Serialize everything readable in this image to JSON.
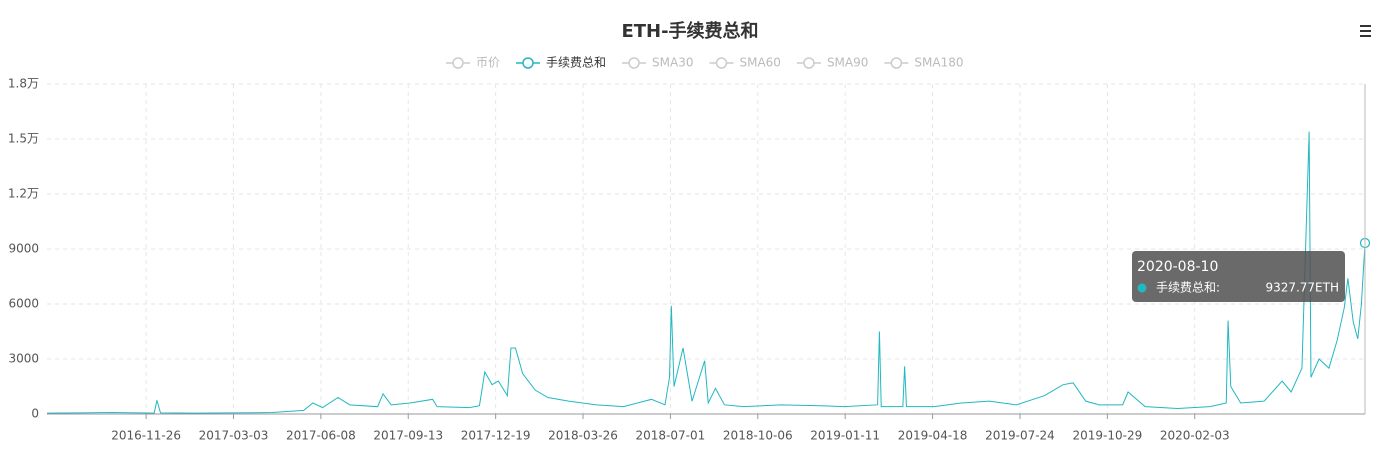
{
  "chart_data": {
    "type": "line",
    "title": "ETH-手续费总和",
    "legend": [
      {
        "name": "币价",
        "active": false
      },
      {
        "name": "手续费总和",
        "active": true
      },
      {
        "name": "SMA30",
        "active": false
      },
      {
        "name": "SMA60",
        "active": false
      },
      {
        "name": "SMA90",
        "active": false
      },
      {
        "name": "SMA180",
        "active": false
      }
    ],
    "xlim": [
      "2016-08-08",
      "2020-08-10"
    ],
    "xticks": [
      "2016-11-26",
      "2017-03-03",
      "2017-06-08",
      "2017-09-13",
      "2017-12-19",
      "2018-03-26",
      "2018-07-01",
      "2018-10-06",
      "2019-01-11",
      "2019-04-18",
      "2019-07-24",
      "2019-10-29",
      "2020-02-03"
    ],
    "ylim": [
      0,
      18000
    ],
    "yticks": [
      0,
      3000,
      6000,
      9000,
      {
        "value": 12000,
        "label": "1.2万"
      },
      {
        "value": 15000,
        "label": "1.5万"
      },
      {
        "value": 18000,
        "label": "1.8万"
      }
    ],
    "grid": true,
    "x": [
      "2016-08-08",
      "2016-09-15",
      "2016-10-20",
      "2016-11-20",
      "2016-12-05",
      "2016-12-08",
      "2016-12-12",
      "2017-01-20",
      "2017-03-03",
      "2017-04-15",
      "2017-05-20",
      "2017-05-30",
      "2017-06-10",
      "2017-06-27",
      "2017-07-10",
      "2017-08-10",
      "2017-08-16",
      "2017-08-25",
      "2017-09-15",
      "2017-10-10",
      "2017-10-15",
      "2017-11-20",
      "2017-12-01",
      "2017-12-07",
      "2017-12-15",
      "2017-12-22",
      "2018-01-01",
      "2018-01-05",
      "2018-01-10",
      "2018-01-18",
      "2018-02-01",
      "2018-02-15",
      "2018-03-10",
      "2018-04-10",
      "2018-05-10",
      "2018-06-10",
      "2018-06-25",
      "2018-06-30",
      "2018-07-02",
      "2018-07-05",
      "2018-07-15",
      "2018-07-25",
      "2018-08-08",
      "2018-08-12",
      "2018-08-20",
      "2018-08-30",
      "2018-09-20",
      "2018-11-01",
      "2018-12-15",
      "2019-01-10",
      "2019-02-16",
      "2019-02-18",
      "2019-02-20",
      "2019-03-16",
      "2019-03-18",
      "2019-03-20",
      "2019-04-20",
      "2019-05-20",
      "2019-06-20",
      "2019-07-20",
      "2019-08-20",
      "2019-09-10",
      "2019-09-21",
      "2019-10-05",
      "2019-10-20",
      "2019-11-15",
      "2019-11-21",
      "2019-12-10",
      "2020-01-15",
      "2020-02-20",
      "2020-03-09",
      "2020-03-11",
      "2020-03-14",
      "2020-03-25",
      "2020-04-20",
      "2020-05-10",
      "2020-05-20",
      "2020-06-01",
      "2020-06-09",
      "2020-06-11",
      "2020-06-20",
      "2020-07-01",
      "2020-07-10",
      "2020-07-18",
      "2020-07-22",
      "2020-07-28",
      "2020-08-02",
      "2020-08-06",
      "2020-08-10"
    ],
    "series": [
      {
        "name": "手续费总和",
        "color": "#21b8c0",
        "values": [
          50,
          60,
          80,
          60,
          50,
          750,
          60,
          50,
          60,
          80,
          200,
          600,
          350,
          900,
          500,
          400,
          1100,
          500,
          600,
          800,
          400,
          350,
          450,
          2300,
          1600,
          1800,
          1000,
          3600,
          3600,
          2200,
          1300,
          900,
          700,
          500,
          400,
          800,
          500,
          2000,
          5900,
          1500,
          3600,
          700,
          2900,
          600,
          1400,
          500,
          400,
          500,
          450,
          400,
          500,
          4500,
          400,
          400,
          2600,
          400,
          400,
          600,
          700,
          500,
          1000,
          1600,
          1700,
          700,
          500,
          500,
          1200,
          400,
          300,
          400,
          600,
          5100,
          1500,
          600,
          700,
          1800,
          1200,
          2500,
          15400,
          2000,
          3000,
          2500,
          4000,
          5800,
          7400,
          5000,
          4100,
          6000,
          9327.77
        ]
      }
    ],
    "tooltip": {
      "date": "2020-08-10",
      "series": "手续费总和:",
      "value_label": "9327.77ETH"
    }
  }
}
